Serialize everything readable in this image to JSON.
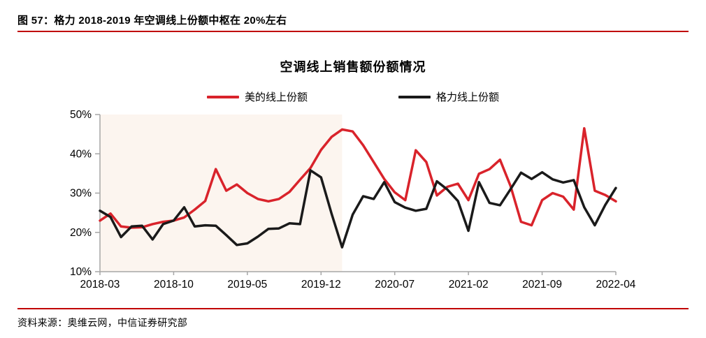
{
  "header": {
    "title": "图 57：格力 2018-2019 年空调线上份额中枢在 20%左右"
  },
  "footer": {
    "source": "资料来源：奥维云网，中信证券研究部"
  },
  "accent": {
    "rule_color": "#c00000"
  },
  "chart_data": {
    "type": "line",
    "title": "空调线上销售额份额情况",
    "grid": false,
    "legend_position": "top",
    "axis_color": "#a6a6a6",
    "categories": [
      "2018-03",
      "2018-04",
      "2018-05",
      "2018-06",
      "2018-07",
      "2018-08",
      "2018-09",
      "2018-10",
      "2018-11",
      "2018-12",
      "2019-01",
      "2019-02",
      "2019-03",
      "2019-04",
      "2019-05",
      "2019-06",
      "2019-07",
      "2019-08",
      "2019-09",
      "2019-10",
      "2019-11",
      "2019-12",
      "2020-01",
      "2020-02",
      "2020-03",
      "2020-04",
      "2020-05",
      "2020-06",
      "2020-07",
      "2020-08",
      "2020-09",
      "2020-10",
      "2020-11",
      "2020-12",
      "2021-01",
      "2021-02",
      "2021-03",
      "2021-04",
      "2021-05",
      "2021-06",
      "2021-07",
      "2021-08",
      "2021-09",
      "2021-10",
      "2021-11",
      "2021-12",
      "2022-01",
      "2022-02",
      "2022-03",
      "2022-04"
    ],
    "series": [
      {
        "name": "美的线上份额",
        "color": "#d9232b",
        "values": [
          23.0,
          24.8,
          21.5,
          21.2,
          21.3,
          22.1,
          22.7,
          23.0,
          23.8,
          25.8,
          28.0,
          36.1,
          30.6,
          32.2,
          30.0,
          28.5,
          27.9,
          28.5,
          30.3,
          33.4,
          36.4,
          41.0,
          44.3,
          46.2,
          45.7,
          42.2,
          37.9,
          33.6,
          30.2,
          28.2,
          40.9,
          37.9,
          29.4,
          31.6,
          32.4,
          28.2,
          34.9,
          36.1,
          38.5,
          31.8,
          22.7,
          21.8,
          28.2,
          30.0,
          29.1,
          25.8,
          46.5,
          30.6,
          29.5,
          27.9
        ]
      },
      {
        "name": "格力线上份额",
        "color": "#1a1a1a",
        "values": [
          25.5,
          23.9,
          18.8,
          21.5,
          21.7,
          18.2,
          22.1,
          23.0,
          26.4,
          21.5,
          21.8,
          21.7,
          19.3,
          16.8,
          17.2,
          18.9,
          20.9,
          21.0,
          22.3,
          22.1,
          35.8,
          34.0,
          24.8,
          16.2,
          24.5,
          29.2,
          28.5,
          32.8,
          27.7,
          26.3,
          25.5,
          26.0,
          33.0,
          30.9,
          28.0,
          20.4,
          32.8,
          27.5,
          26.9,
          31.0,
          35.2,
          33.6,
          35.3,
          33.5,
          32.7,
          33.3,
          26.4,
          21.8,
          27.0,
          31.3
        ]
      }
    ],
    "y_axis": {
      "min": 10,
      "max": 50,
      "step": 10,
      "labels": [
        "10%",
        "20%",
        "30%",
        "40%",
        "50%"
      ]
    },
    "x_tick_indices": [
      0,
      7,
      14,
      21,
      28,
      35,
      42,
      49
    ],
    "highlight_band": {
      "start_category": "2018-03",
      "end_category": "2020-02",
      "color": "#fcf5ef"
    }
  }
}
